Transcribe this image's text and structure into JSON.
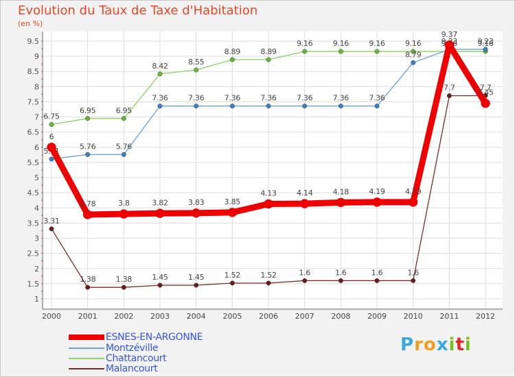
{
  "title": "Evolution du Taux de Taxe d'Habitation",
  "subtitle": "(en %)",
  "logo": {
    "text": "Proxiti",
    "letters": [
      "P",
      "r",
      "o",
      "x",
      "i",
      "t",
      "i"
    ],
    "colors": [
      "#3aa8e0",
      "#f0a020",
      "#f0a020",
      "#3aa8e0",
      "#78c020",
      "#e02828",
      "#78c020"
    ]
  },
  "chart_data": {
    "type": "line",
    "title": "Evolution du Taux de Taxe d'Habitation",
    "ylabel": "(en %)",
    "xlabel": "",
    "ylim": [
      1,
      9.5
    ],
    "yticks": [
      "1",
      "1.5",
      "2",
      "2.5",
      "3",
      "3.5",
      "4",
      "4.5",
      "5",
      "5.5",
      "6",
      "6.5",
      "7",
      "7.5",
      "8",
      "8.5",
      "9",
      "9.5"
    ],
    "categories": [
      "2000",
      "2001",
      "2002",
      "2003",
      "2004",
      "2005",
      "2006",
      "2007",
      "2008",
      "2009",
      "2010",
      "2011",
      "2012"
    ],
    "grid": true,
    "legend_position": "bottom-left",
    "series": [
      {
        "name": "Chattancourt",
        "color": "#88d060",
        "marker_color": "#66bb33",
        "values": [
          6.75,
          6.95,
          6.95,
          8.42,
          8.55,
          8.89,
          8.89,
          9.16,
          9.16,
          9.16,
          9.16,
          9.16,
          9.16
        ],
        "labels": [
          "6.75",
          "6.95",
          "6.95",
          "8.42",
          "8.55",
          "8.89",
          "8.89",
          "9.16",
          "9.16",
          "9.16",
          "9.16",
          "9.16",
          "9.16"
        ]
      },
      {
        "name": "Montzéville",
        "color": "#6aa2d2",
        "marker_color": "#3a82c8",
        "values": [
          5.61,
          5.76,
          5.76,
          7.36,
          7.36,
          7.36,
          7.36,
          7.36,
          7.36,
          7.36,
          8.79,
          9.23,
          9.23
        ],
        "labels": [
          "5.61",
          "5.76",
          "5.76",
          "7.36",
          "7.36",
          "7.36",
          "7.36",
          "7.36",
          "7.36",
          "7.36",
          "8.79",
          "9.23",
          "9.23"
        ]
      },
      {
        "name": "Malancourt",
        "color": "#7a2a2a",
        "marker_color": "#6a1c1c",
        "values": [
          3.31,
          1.38,
          1.38,
          1.45,
          1.45,
          1.52,
          1.52,
          1.6,
          1.6,
          1.6,
          1.6,
          7.7,
          7.7
        ],
        "labels": [
          "3.31",
          "1.38",
          "1.38",
          "1.45",
          "1.45",
          "1.52",
          "1.52",
          "1.6",
          "1.6",
          "1.6",
          "1.6",
          "7.7",
          "7.7"
        ]
      },
      {
        "name": "ESNES-EN-ARGONNE",
        "color": "#ee0000",
        "marker_color": "#ee0000",
        "values": [
          6,
          3.78,
          3.8,
          3.82,
          3.83,
          3.85,
          4.13,
          4.14,
          4.18,
          4.19,
          4.19,
          9.37,
          7.45
        ],
        "labels": [
          "6",
          "3.78",
          "3.8",
          "3.82",
          "3.83",
          "3.85",
          "4.13",
          "4.14",
          "4.18",
          "4.19",
          "4.19",
          "9.37",
          "7.45"
        ]
      }
    ],
    "legend": [
      "ESNES-EN-ARGONNE",
      "Montzéville",
      "Chattancourt",
      "Malancourt"
    ]
  }
}
